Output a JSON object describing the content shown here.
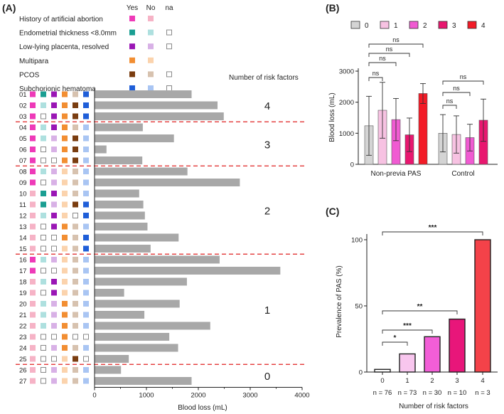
{
  "panels": {
    "a": "(A)",
    "b": "(B)",
    "c": "(C)"
  },
  "colors": {
    "factors": [
      {
        "yes": "#ee3ab8",
        "no": "#f6b3c6"
      },
      {
        "yes": "#1a9e92",
        "no": "#aee0df"
      },
      {
        "yes": "#9a16b5",
        "no": "#d8b1e6"
      },
      {
        "yes": "#f28e32",
        "no": "#fbd3ad"
      },
      {
        "yes": "#7a3d10",
        "no": "#d7c2af"
      },
      {
        "yes": "#1f5ed8",
        "no": "#a9c5f3"
      }
    ],
    "bar_a": "#a8a8a8",
    "divider": "#e02020",
    "b_groups": [
      "#d4d4d4",
      "#f7c2e2",
      "#f05bd2",
      "#e8176f",
      "#f21b27"
    ],
    "c_bars": [
      "#ffffff",
      "#f8c6ee",
      "#f25ed7",
      "#e8167a",
      "#f44249"
    ]
  },
  "chart_data": [
    {
      "panel": "A",
      "type": "bar",
      "orientation": "horizontal",
      "legend_header": {
        "yes": "Yes",
        "no": "No",
        "na": "na"
      },
      "factors": [
        {
          "label": "History of artificial abortion",
          "has_na": false
        },
        {
          "label": "Endometrial thickness <8.0mm",
          "has_na": true
        },
        {
          "label": "Low-lying placenta, resolved",
          "has_na": true
        },
        {
          "label": "Multipara",
          "has_na": false
        },
        {
          "label": "PCOS",
          "has_na": true
        },
        {
          "label": "Subchorionic hematoma",
          "has_na": true
        }
      ],
      "risk_header": "Number of risk factors",
      "xlabel": "Blood loss (mL)",
      "xlim": [
        0,
        4000
      ],
      "xticks": [
        0,
        1000,
        2000,
        3000,
        4000
      ],
      "groups": [
        {
          "label": "4",
          "start": 0,
          "end": 2
        },
        {
          "label": "3",
          "start": 3,
          "end": 6
        },
        {
          "label": "2",
          "start": 7,
          "end": 14
        },
        {
          "label": "1",
          "start": 15,
          "end": 24
        },
        {
          "label": "0",
          "start": 25,
          "end": 26
        }
      ],
      "cases": [
        {
          "id": "01",
          "value": 1870,
          "f": [
            "y",
            "y",
            "y",
            "y",
            "n",
            "y"
          ]
        },
        {
          "id": "02",
          "value": 2370,
          "f": [
            "y",
            "n",
            "y",
            "y",
            "y",
            "y"
          ]
        },
        {
          "id": "03",
          "value": 2490,
          "f": [
            "y",
            "x",
            "y",
            "y",
            "y",
            "y"
          ]
        },
        {
          "id": "04",
          "value": 930,
          "f": [
            "y",
            "n",
            "y",
            "y",
            "n",
            "n"
          ]
        },
        {
          "id": "05",
          "value": 1530,
          "f": [
            "y",
            "n",
            "n",
            "y",
            "y",
            "n"
          ]
        },
        {
          "id": "06",
          "value": 230,
          "f": [
            "y",
            "x",
            "n",
            "y",
            "y",
            "n"
          ]
        },
        {
          "id": "07",
          "value": 920,
          "f": [
            "y",
            "x",
            "x",
            "y",
            "y",
            "n"
          ]
        },
        {
          "id": "08",
          "value": 1790,
          "f": [
            "y",
            "n",
            "n",
            "n",
            "n",
            "n"
          ]
        },
        {
          "id": "09",
          "value": 2800,
          "f": [
            "y",
            "x",
            "n",
            "n",
            "n",
            "n"
          ]
        },
        {
          "id": "10",
          "value": 860,
          "f": [
            "n",
            "y",
            "y",
            "n",
            "n",
            "n"
          ]
        },
        {
          "id": "11",
          "value": 940,
          "f": [
            "n",
            "y",
            "n",
            "n",
            "y",
            "y"
          ]
        },
        {
          "id": "12",
          "value": 970,
          "f": [
            "n",
            "n",
            "y",
            "n",
            "x",
            "y"
          ]
        },
        {
          "id": "13",
          "value": 1020,
          "f": [
            "n",
            "x",
            "y",
            "y",
            "n",
            "n"
          ]
        },
        {
          "id": "14",
          "value": 1620,
          "f": [
            "n",
            "x",
            "x",
            "y",
            "n",
            "y"
          ]
        },
        {
          "id": "15",
          "value": 1080,
          "f": [
            "n",
            "x",
            "x",
            "n",
            "n",
            "y"
          ]
        },
        {
          "id": "16",
          "value": 2410,
          "f": [
            "y",
            "n",
            "n",
            "n",
            "n",
            "n"
          ]
        },
        {
          "id": "17",
          "value": 3580,
          "f": [
            "y",
            "x",
            "x",
            "n",
            "n",
            "n"
          ]
        },
        {
          "id": "18",
          "value": 1780,
          "f": [
            "n",
            "n",
            "y",
            "n",
            "n",
            "n"
          ]
        },
        {
          "id": "19",
          "value": 570,
          "f": [
            "n",
            "x",
            "y",
            "n",
            "n",
            "n"
          ]
        },
        {
          "id": "20",
          "value": 1640,
          "f": [
            "n",
            "n",
            "n",
            "y",
            "n",
            "n"
          ]
        },
        {
          "id": "21",
          "value": 960,
          "f": [
            "n",
            "n",
            "n",
            "y",
            "n",
            "n"
          ]
        },
        {
          "id": "22",
          "value": 2230,
          "f": [
            "n",
            "n",
            "n",
            "y",
            "n",
            "n"
          ]
        },
        {
          "id": "23",
          "value": 1440,
          "f": [
            "n",
            "x",
            "x",
            "y",
            "x",
            "x"
          ]
        },
        {
          "id": "24",
          "value": 1610,
          "f": [
            "n",
            "x",
            "n",
            "y",
            "n",
            "n"
          ]
        },
        {
          "id": "25",
          "value": 660,
          "f": [
            "n",
            "x",
            "x",
            "n",
            "y",
            "x"
          ]
        },
        {
          "id": "26",
          "value": 510,
          "f": [
            "n",
            "x",
            "n",
            "n",
            "n",
            "n"
          ]
        },
        {
          "id": "27",
          "value": 1870,
          "f": [
            "n",
            "x",
            "n",
            "n",
            "n",
            "n"
          ]
        }
      ]
    },
    {
      "panel": "B",
      "type": "bar",
      "legend": [
        "0",
        "1",
        "2",
        "3",
        "4"
      ],
      "ylabel": "Blood loss (mL)",
      "ylim": [
        0,
        3000
      ],
      "yticks": [
        0,
        1000,
        2000,
        3000
      ],
      "categories": [
        "Non-previa PAS",
        "Control"
      ],
      "series": [
        {
          "name": "0",
          "values": [
            1240,
            1000
          ],
          "err": [
            950,
            600
          ]
        },
        {
          "name": "1",
          "values": [
            1740,
            960
          ],
          "err": [
            900,
            600
          ]
        },
        {
          "name": "2",
          "values": [
            1440,
            860
          ],
          "err": [
            680,
            430
          ]
        },
        {
          "name": "3",
          "values": [
            950,
            1420
          ],
          "err": [
            540,
            680
          ]
        },
        {
          "name": "4",
          "values": [
            2280,
            null
          ],
          "err": [
            320,
            null
          ]
        }
      ],
      "significance": [
        {
          "cat": 0,
          "from": 0,
          "to": 1,
          "label": "ns"
        },
        {
          "cat": 0,
          "from": 0,
          "to": 2,
          "label": "ns"
        },
        {
          "cat": 0,
          "from": 0,
          "to": 3,
          "label": "ns"
        },
        {
          "cat": 0,
          "from": 0,
          "to": 4,
          "label": "ns"
        },
        {
          "cat": 1,
          "from": 0,
          "to": 1,
          "label": "ns"
        },
        {
          "cat": 1,
          "from": 0,
          "to": 2,
          "label": "ns"
        },
        {
          "cat": 1,
          "from": 0,
          "to": 3,
          "label": "ns"
        }
      ]
    },
    {
      "panel": "C",
      "type": "bar",
      "ylabel": "Prevalence of PAS (%)",
      "xlabel": "Number of risk factors",
      "ylim": [
        0,
        100
      ],
      "yticks": [
        0,
        50,
        100
      ],
      "categories": [
        "0",
        "1",
        "2",
        "3",
        "4"
      ],
      "values": [
        2,
        13.7,
        26.7,
        40,
        100
      ],
      "n_labels": [
        "n = 76",
        "n = 73",
        "n = 30",
        "n = 10",
        "n = 3"
      ],
      "significance": [
        {
          "from": 0,
          "to": 1,
          "label": "*"
        },
        {
          "from": 0,
          "to": 2,
          "label": "***"
        },
        {
          "from": 0,
          "to": 3,
          "label": "**"
        },
        {
          "from": 0,
          "to": 4,
          "label": "***"
        }
      ]
    }
  ]
}
